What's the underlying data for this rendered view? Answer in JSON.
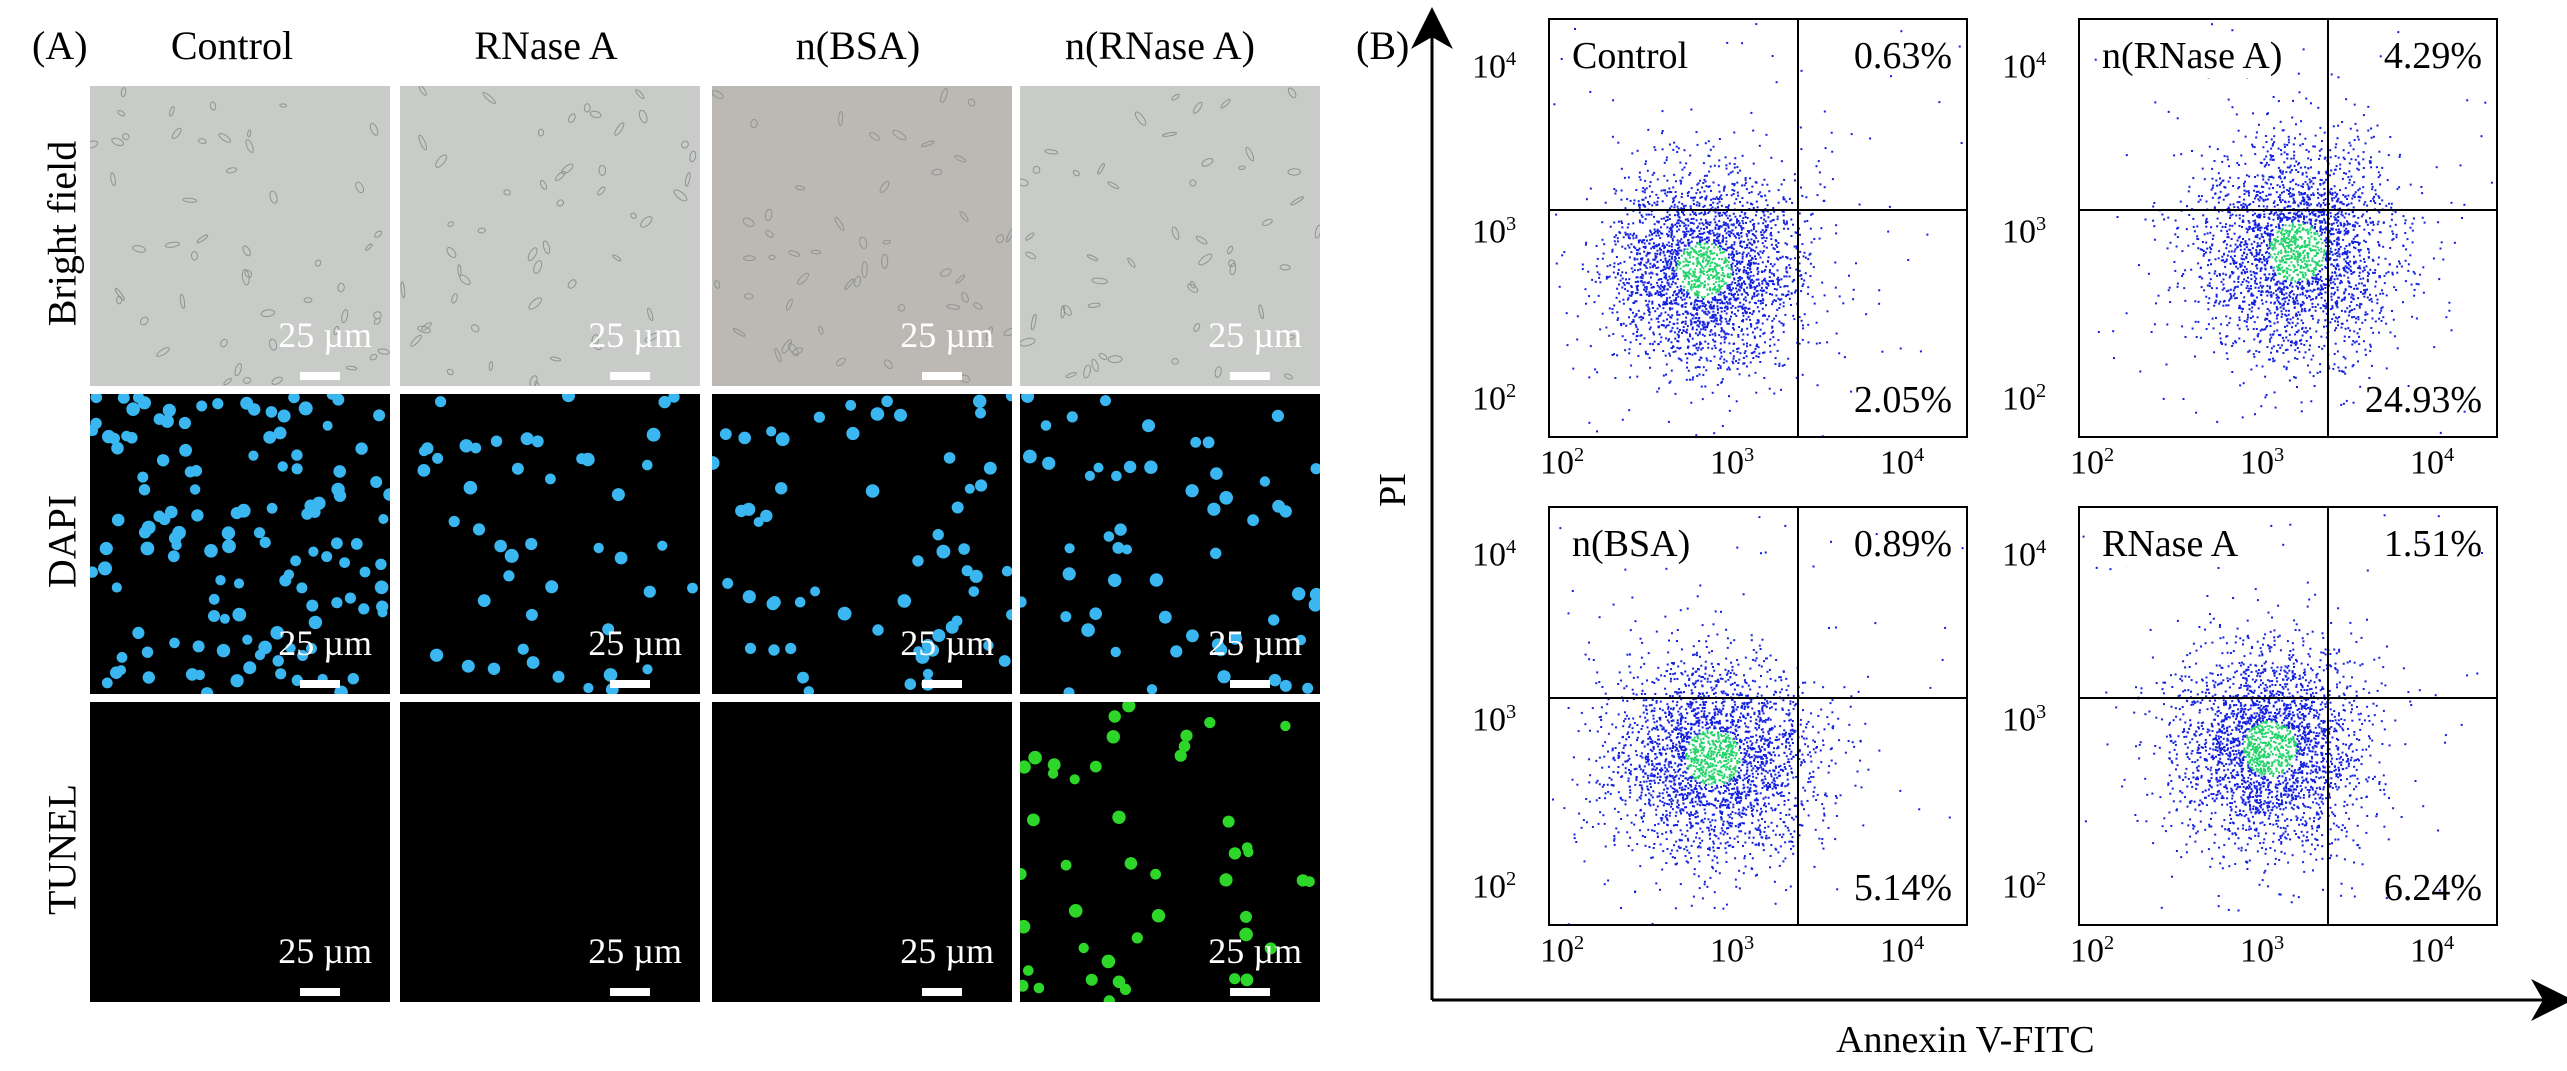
{
  "panel_a": {
    "label": "(A)",
    "columns": [
      "Control",
      "RNase A",
      "n(BSA)",
      "n(RNase A)"
    ],
    "rows": [
      "Bright field",
      "DAPI",
      "TUNEL"
    ],
    "scale_bar": "25 µm"
  },
  "panel_b": {
    "label": "(B)",
    "y_axis_title": "PI",
    "x_axis_title": "Annexin V-FITC",
    "ticks": {
      "base": "10",
      "exponents": [
        "2",
        "3",
        "4"
      ]
    },
    "plots": [
      {
        "name": "Control",
        "upper_right": "0.63%",
        "lower_right": "2.05%"
      },
      {
        "name": "n(RNase A)",
        "upper_right": "4.29%",
        "lower_right": "24.93%"
      },
      {
        "name": "n(BSA)",
        "upper_right": "0.89%",
        "lower_right": "5.14%"
      },
      {
        "name": "RNase A",
        "upper_right": "1.51%",
        "lower_right": "6.24%"
      }
    ]
  },
  "colors": {
    "bright_field_bg": "#c9cbc8",
    "dapi_nuclei": "#3ab6f0",
    "tunel_nuclei": "#2ed62a",
    "dot_blue": "#1320e0",
    "dot_core": "#22d36a"
  }
}
